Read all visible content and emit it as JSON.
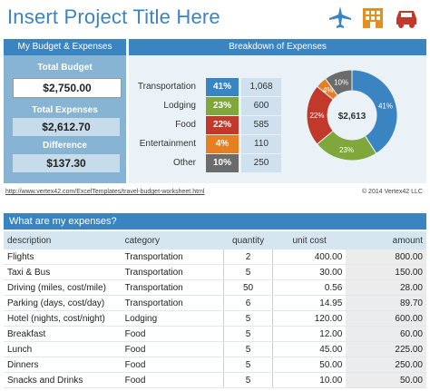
{
  "title": "Insert Project Title Here",
  "icons": [
    "airplane-icon",
    "building-icon",
    "car-icon"
  ],
  "colors": {
    "accent": "#3b84c2",
    "transportation": "#3b84c2",
    "lodging": "#7fa73c",
    "food": "#c0392b",
    "entertainment": "#e67e22",
    "other": "#6b6b6b"
  },
  "budget": {
    "header": "My Budget & Expenses",
    "total_budget_label": "Total Budget",
    "total_budget_value": "$2,750.00",
    "total_expenses_label": "Total Expenses",
    "total_expenses_value": "$2,612.70",
    "difference_label": "Difference",
    "difference_value": "$137.30"
  },
  "breakdown": {
    "header": "Breakdown of Expenses",
    "rows": [
      {
        "category": "Transportation",
        "pct": "41%",
        "value": "1,068"
      },
      {
        "category": "Lodging",
        "pct": "23%",
        "value": "600"
      },
      {
        "category": "Food",
        "pct": "22%",
        "value": "585"
      },
      {
        "category": "Entertainment",
        "pct": "4%",
        "value": "110"
      },
      {
        "category": "Other",
        "pct": "10%",
        "value": "250"
      }
    ]
  },
  "chart_data": {
    "type": "pie",
    "center_label": "$2,613",
    "categories": [
      "Transportation",
      "Lodging",
      "Food",
      "Entertainment",
      "Other"
    ],
    "values": [
      41,
      23,
      22,
      4,
      10
    ],
    "labels": [
      "41%",
      "23%",
      "22%",
      "4%",
      "10%"
    ],
    "colors": [
      "#3b84c2",
      "#7fa73c",
      "#c0392b",
      "#e67e22",
      "#6b6b6b"
    ]
  },
  "footer": {
    "link": "http://www.vertex42.com/ExcelTemplates/travel-budget-worksheet.html",
    "copyright": "© 2014 Vertex42 LLC"
  },
  "expenses": {
    "header": "What are my expenses?",
    "columns": [
      "description",
      "category",
      "quantity",
      "unit cost",
      "amount"
    ],
    "rows": [
      {
        "description": "Flights",
        "category": "Transportation",
        "quantity": "2",
        "unit_cost": "400.00",
        "amount": "800.00"
      },
      {
        "description": "Taxi & Bus",
        "category": "Transportation",
        "quantity": "5",
        "unit_cost": "30.00",
        "amount": "150.00"
      },
      {
        "description": "Driving (miles, cost/mile)",
        "category": "Transportation",
        "quantity": "50",
        "unit_cost": "0.56",
        "amount": "28.00"
      },
      {
        "description": "Parking (days, cost/day)",
        "category": "Transportation",
        "quantity": "6",
        "unit_cost": "14.95",
        "amount": "89.70"
      },
      {
        "description": "Hotel (nights, cost/night)",
        "category": "Lodging",
        "quantity": "5",
        "unit_cost": "120.00",
        "amount": "600.00"
      },
      {
        "description": "Breakfast",
        "category": "Food",
        "quantity": "5",
        "unit_cost": "12.00",
        "amount": "60.00"
      },
      {
        "description": "Lunch",
        "category": "Food",
        "quantity": "5",
        "unit_cost": "45.00",
        "amount": "225.00"
      },
      {
        "description": "Dinners",
        "category": "Food",
        "quantity": "5",
        "unit_cost": "50.00",
        "amount": "250.00"
      },
      {
        "description": "Snacks and Drinks",
        "category": "Food",
        "quantity": "5",
        "unit_cost": "10.00",
        "amount": "50.00"
      }
    ]
  }
}
